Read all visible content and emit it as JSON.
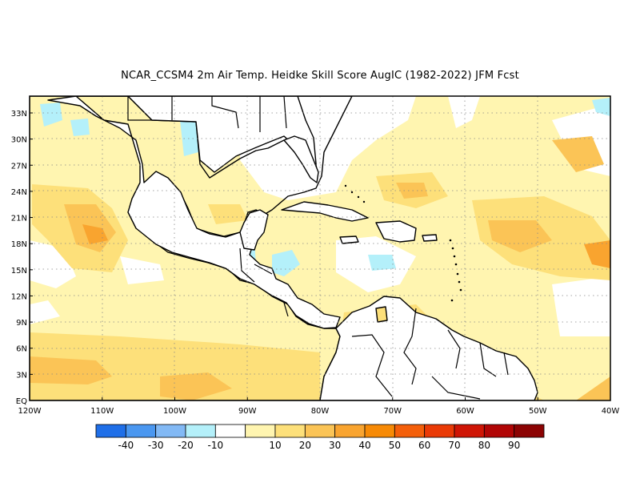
{
  "title": "NCAR_CCSM4  2m Air Temp. Heidke Skill Score AugIC (1982-2022) JFM Fcst",
  "map": {
    "lon_range": [
      -120,
      -40
    ],
    "lat_range": [
      0,
      35
    ],
    "lat_ticks": [
      "EQ",
      "3N",
      "6N",
      "9N",
      "12N",
      "15N",
      "18N",
      "21N",
      "24N",
      "27N",
      "30N",
      "33N"
    ],
    "lon_ticks": [
      "120W",
      "110W",
      "100W",
      "90W",
      "80W",
      "70W",
      "60W",
      "50W",
      "40W"
    ],
    "grid": "dotted",
    "coastline_color": "#000000"
  },
  "colorbar": {
    "colors": [
      "#1f6fe8",
      "#4a97f0",
      "#82b9f5",
      "#b4f0fa",
      "#ffffff",
      "#fff5b0",
      "#fde07a",
      "#fbc456",
      "#f9a42f",
      "#f78a05",
      "#f45f0a",
      "#ea3a06",
      "#cf1505",
      "#b10505",
      "#8c0303"
    ],
    "labels": [
      "-40",
      "-30",
      "-20",
      "-10",
      "10",
      "20",
      "30",
      "40",
      "50",
      "60",
      "70",
      "80",
      "90"
    ]
  }
}
